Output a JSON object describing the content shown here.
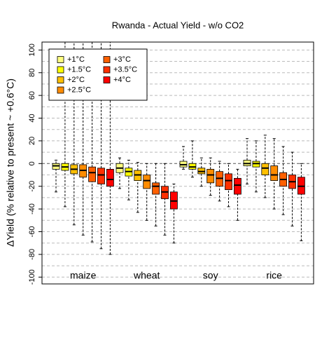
{
  "chart_data": {
    "type": "box",
    "title": "Rwanda - Actual Yield - w/o CO2",
    "y_label": "ΔYield (% relative to present ~ +0.6°C)",
    "categories": [
      "maize",
      "wheat",
      "soy",
      "rice"
    ],
    "ylim": [
      -106,
      107
    ],
    "yticks": [
      -100,
      -80,
      -60,
      -40,
      -20,
      0,
      20,
      40,
      60,
      80,
      100
    ],
    "ygrid": [
      -100,
      -90,
      -80,
      -70,
      -60,
      -50,
      -40,
      -30,
      -20,
      -10,
      0,
      10,
      20,
      30,
      40,
      50,
      60,
      70,
      80,
      90,
      100
    ],
    "legend": "top-left",
    "series": [
      {
        "name": "+1°C",
        "color": "#ffff80",
        "values": [
          [
            -25,
            -5,
            -2,
            0,
            3
          ],
          [
            -22,
            -8,
            -4,
            0,
            5
          ],
          [
            -5,
            -3,
            -1,
            2,
            15
          ],
          [
            -18,
            -2,
            0,
            3,
            22
          ]
        ]
      },
      {
        "name": "+1.5°C",
        "color": "#ffff00",
        "values": [
          [
            -38,
            -6,
            -3,
            0,
            107
          ],
          [
            -32,
            -11,
            -7,
            -4,
            3
          ],
          [
            -12,
            -5,
            -3,
            0,
            20
          ],
          [
            -25,
            -3,
            0,
            2,
            20
          ]
        ]
      },
      {
        "name": "+2°C",
        "color": "#ffc000",
        "values": [
          [
            -54,
            -9,
            -5,
            -1,
            107
          ],
          [
            -43,
            -15,
            -10,
            -6,
            1
          ],
          [
            -20,
            -9,
            -7,
            -4,
            5
          ],
          [
            -30,
            -10,
            -4,
            0,
            25
          ]
        ]
      },
      {
        "name": "+2.5°C",
        "color": "#ff8c00",
        "values": [
          [
            -63,
            -12,
            -6,
            -1,
            107
          ],
          [
            -50,
            -22,
            -15,
            -10,
            0
          ],
          [
            -28,
            -17,
            -10,
            -5,
            5
          ],
          [
            -40,
            -15,
            -10,
            -2,
            22
          ]
        ]
      },
      {
        "name": "+3°C",
        "color": "#ff6000",
        "values": [
          [
            -69,
            -16,
            -8,
            -3,
            107
          ],
          [
            -55,
            -27,
            -20,
            -17,
            0
          ],
          [
            -33,
            -20,
            -13,
            -7,
            2
          ],
          [
            -45,
            -20,
            -14,
            -8,
            15
          ]
        ]
      },
      {
        "name": "+3.5°C",
        "color": "#ff3000",
        "values": [
          [
            -75,
            -18,
            -10,
            -4,
            107
          ],
          [
            -63,
            -31,
            -25,
            -20,
            0
          ],
          [
            -38,
            -23,
            -15,
            -9,
            0
          ],
          [
            -55,
            -22,
            -16,
            -10,
            10
          ]
        ]
      },
      {
        "name": "+4°C",
        "color": "#ff0000",
        "values": [
          [
            -80,
            -20,
            -14,
            -5,
            107
          ],
          [
            -70,
            -40,
            -33,
            -25,
            -18
          ],
          [
            -50,
            -27,
            -19,
            -13,
            -5
          ],
          [
            -68,
            -27,
            -20,
            -12,
            0
          ]
        ]
      }
    ]
  }
}
